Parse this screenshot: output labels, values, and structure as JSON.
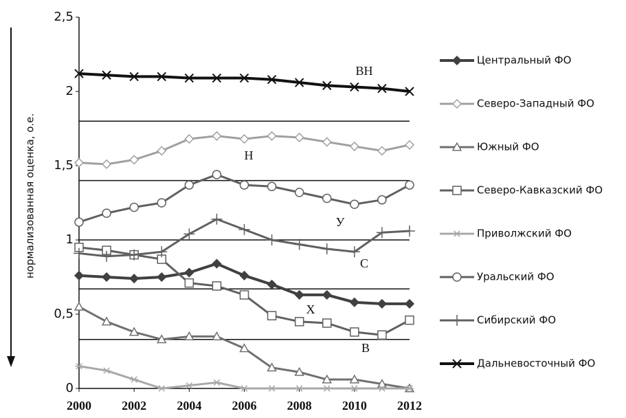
{
  "chart_data": {
    "type": "line",
    "y_label": "нормализованная оценка, о.е.",
    "x": [
      2000,
      2001,
      2002,
      2003,
      2004,
      2005,
      2006,
      2007,
      2008,
      2009,
      2010,
      2011,
      2012
    ],
    "xlim": [
      2000,
      2012
    ],
    "xticks": [
      2000,
      2002,
      2004,
      2006,
      2008,
      2010,
      2012
    ],
    "ylim": [
      0,
      2.5
    ],
    "yticks": [
      0,
      {
        "value": 0.5,
        "label": "0,5"
      },
      1,
      {
        "value": 1.5,
        "label": "1,5"
      },
      2,
      {
        "value": 2.5,
        "label": "2,5"
      }
    ],
    "thresholds": [
      1.8,
      1.4,
      1.0,
      0.67,
      0.33
    ],
    "annotations": [
      "ВН",
      "Н",
      "У",
      "С",
      "Х",
      "В"
    ],
    "legend": "right",
    "series": [
      {
        "name": "Центральный ФО",
        "color": "#404040",
        "marker": "diamond-filled",
        "width": 4,
        "values": [
          0.76,
          0.75,
          0.74,
          0.75,
          0.78,
          0.84,
          0.76,
          0.7,
          0.63,
          0.63,
          0.58,
          0.57,
          0.57
        ]
      },
      {
        "name": "Северо-Западный ФО",
        "color": "#a0a0a0",
        "marker": "diamond",
        "width": 3,
        "values": [
          1.52,
          1.51,
          1.54,
          1.6,
          1.68,
          1.7,
          1.68,
          1.7,
          1.69,
          1.66,
          1.63,
          1.6,
          1.64
        ]
      },
      {
        "name": "Южный ФО",
        "color": "#707070",
        "marker": "triangle",
        "width": 3,
        "values": [
          0.55,
          0.45,
          0.38,
          0.33,
          0.35,
          0.35,
          0.27,
          0.14,
          0.11,
          0.06,
          0.06,
          0.03,
          0.0
        ]
      },
      {
        "name": "Северо-Кавказский ФО",
        "color": "#606060",
        "marker": "square",
        "width": 3,
        "values": [
          0.95,
          0.93,
          0.9,
          0.87,
          0.71,
          0.69,
          0.63,
          0.49,
          0.45,
          0.44,
          0.38,
          0.36,
          0.46
        ]
      },
      {
        "name": "Приволжский ФО",
        "color": "#a8a8a8",
        "marker": "asterisk",
        "width": 3,
        "values": [
          0.15,
          0.12,
          0.06,
          0.0,
          0.02,
          0.04,
          0.0,
          0.0,
          0.0,
          0.0,
          0.0,
          0.0,
          0.0
        ]
      },
      {
        "name": "Уральский ФО",
        "color": "#606060",
        "marker": "circle",
        "width": 3,
        "values": [
          1.12,
          1.18,
          1.22,
          1.25,
          1.37,
          1.44,
          1.37,
          1.36,
          1.32,
          1.28,
          1.24,
          1.27,
          1.37
        ]
      },
      {
        "name": "Сибирский ФО",
        "color": "#606060",
        "marker": "plus",
        "width": 3,
        "values": [
          0.91,
          0.89,
          0.9,
          0.92,
          1.04,
          1.14,
          1.07,
          1.0,
          0.97,
          0.94,
          0.92,
          1.05,
          1.06
        ]
      },
      {
        "name": "Дальневосточный ФО",
        "color": "#111111",
        "marker": "cross",
        "width": 4,
        "values": [
          2.12,
          2.11,
          2.1,
          2.1,
          2.09,
          2.09,
          2.09,
          2.08,
          2.06,
          2.04,
          2.03,
          2.02,
          2.0
        ]
      }
    ]
  }
}
